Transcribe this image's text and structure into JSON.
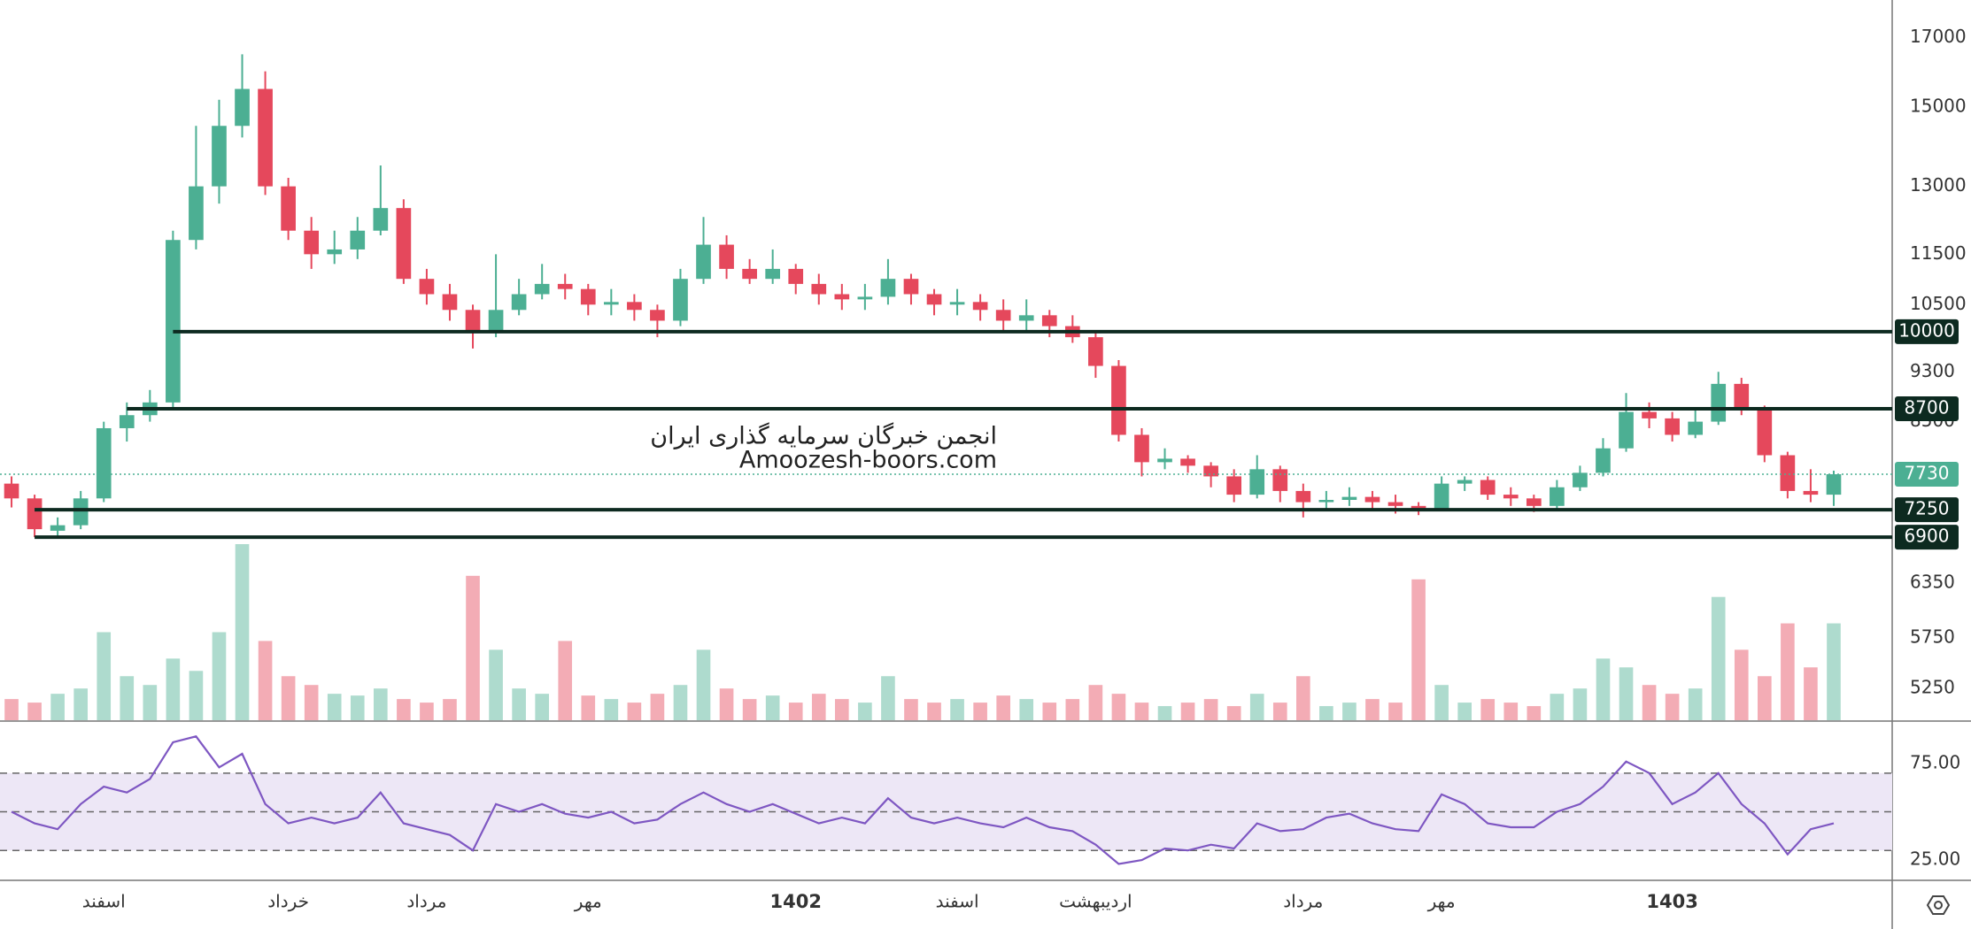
{
  "chart_data": {
    "type": "candlestick",
    "categories": [
      null,
      null,
      null,
      null,
      "اسفند",
      null,
      null,
      null,
      null,
      null,
      null,
      null,
      "خرداد",
      null,
      null,
      null,
      null,
      null,
      "مرداد",
      null,
      null,
      null,
      null,
      null,
      null,
      "مهر",
      null,
      null,
      null,
      null,
      null,
      null,
      null,
      null,
      "1402",
      null,
      null,
      null,
      null,
      null,
      null,
      "اسفند",
      null,
      null,
      null,
      null,
      null,
      "اردیبهشت",
      null,
      null,
      null,
      null,
      null,
      null,
      null,
      null,
      "مرداد",
      null,
      null,
      null,
      null,
      null,
      "مهر",
      null,
      null,
      null,
      null,
      null,
      null,
      null,
      null,
      null,
      "1403",
      null,
      null,
      null,
      null,
      null,
      null,
      null
    ],
    "open": [
      7600,
      7400,
      6980,
      7050,
      7400,
      8400,
      8600,
      8800,
      11800,
      13000,
      14500,
      15500,
      13000,
      12000,
      11500,
      11600,
      12000,
      12500,
      11000,
      10700,
      10400,
      10000,
      10400,
      10700,
      10900,
      10800,
      10500,
      10550,
      10400,
      10200,
      11000,
      11700,
      11200,
      11000,
      11200,
      10900,
      10700,
      10600,
      10650,
      11000,
      10700,
      10500,
      10550,
      10400,
      10200,
      10300,
      10100,
      9900,
      9400,
      8300,
      7900,
      7950,
      7850,
      7700,
      7450,
      7800,
      7500,
      7350,
      7380,
      7420,
      7350,
      7300,
      7250,
      7600,
      7650,
      7450,
      7400,
      7300,
      7550,
      7750,
      8100,
      8650,
      8550,
      8300,
      8500,
      9100,
      8700,
      8000,
      7500,
      7450
    ],
    "high": [
      7700,
      7450,
      7150,
      7500,
      8500,
      8800,
      9000,
      12000,
      14500,
      15200,
      16500,
      16000,
      13200,
      12300,
      12000,
      12300,
      13500,
      12700,
      11200,
      10900,
      10500,
      11500,
      11000,
      11300,
      11100,
      10900,
      10800,
      10700,
      10500,
      11200,
      12300,
      11900,
      11400,
      11600,
      11300,
      11100,
      10900,
      10900,
      11400,
      11100,
      10800,
      10800,
      10700,
      10600,
      10600,
      10400,
      10300,
      10000,
      9500,
      8400,
      8100,
      8000,
      7900,
      7800,
      8000,
      7850,
      7600,
      7500,
      7550,
      7500,
      7450,
      7350,
      7700,
      7700,
      7700,
      7550,
      7450,
      7650,
      7850,
      8250,
      8950,
      8800,
      8650,
      8700,
      9300,
      9200,
      8750,
      8050,
      7800,
      7780
    ],
    "low": [
      7280,
      6900,
      6900,
      7000,
      7350,
      8200,
      8500,
      8700,
      11600,
      12600,
      14200,
      12800,
      11800,
      11200,
      11300,
      11400,
      11900,
      10900,
      10500,
      10200,
      9700,
      9900,
      10300,
      10600,
      10600,
      10300,
      10300,
      10200,
      9900,
      10100,
      10900,
      11000,
      10900,
      10900,
      10700,
      10500,
      10400,
      10400,
      10500,
      10500,
      10300,
      10300,
      10200,
      10000,
      10000,
      9900,
      9800,
      9200,
      8200,
      7700,
      7800,
      7750,
      7550,
      7350,
      7400,
      7350,
      7150,
      7250,
      7300,
      7250,
      7200,
      7180,
      7230,
      7500,
      7380,
      7300,
      7220,
      7250,
      7500,
      7700,
      8050,
      8400,
      8200,
      8250,
      8450,
      8600,
      7900,
      7400,
      7350,
      7300
    ],
    "close": [
      7400,
      7000,
      7050,
      7400,
      8400,
      8600,
      8800,
      11800,
      13000,
      14500,
      15500,
      13000,
      12000,
      11500,
      11600,
      12000,
      12500,
      11000,
      10700,
      10400,
      10000,
      10400,
      10700,
      10900,
      10800,
      10500,
      10550,
      10400,
      10200,
      11000,
      11700,
      11200,
      11000,
      11200,
      10900,
      10700,
      10600,
      10650,
      11000,
      10700,
      10500,
      10550,
      10400,
      10200,
      10300,
      10100,
      9900,
      9400,
      8300,
      7900,
      7950,
      7850,
      7700,
      7450,
      7800,
      7500,
      7350,
      7380,
      7420,
      7350,
      7300,
      7250,
      7600,
      7650,
      7450,
      7400,
      7300,
      7550,
      7750,
      8100,
      8650,
      8550,
      8300,
      8500,
      9100,
      8700,
      8000,
      7500,
      7450,
      7730
    ],
    "volume": [
      12,
      10,
      15,
      18,
      50,
      25,
      20,
      35,
      28,
      50,
      100,
      45,
      25,
      20,
      15,
      14,
      18,
      12,
      10,
      12,
      82,
      40,
      18,
      15,
      45,
      14,
      12,
      10,
      15,
      20,
      40,
      18,
      12,
      14,
      10,
      15,
      12,
      10,
      25,
      12,
      10,
      12,
      10,
      14,
      12,
      10,
      12,
      20,
      15,
      10,
      8,
      10,
      12,
      8,
      15,
      10,
      25,
      8,
      10,
      12,
      10,
      80,
      20,
      10,
      12,
      10,
      8,
      15,
      18,
      35,
      30,
      20,
      15,
      18,
      70,
      40,
      25,
      55,
      30,
      55
    ],
    "up_color": "#4caf93",
    "down_color": "#e5485c",
    "ylim": [
      4950,
      18200
    ],
    "log_scale": true,
    "yticks": [
      17000,
      15000,
      13000,
      11500,
      10500,
      9300,
      8500,
      6350,
      5750,
      5250
    ],
    "levels": [
      10000,
      8700,
      7250,
      6900
    ],
    "level_color": "#0d2a20",
    "watermark": [
      "انجمن خبرگان سرمایه گذاری ایران",
      "Amoozesh-boors.com"
    ],
    "rsi": {
      "values": [
        50,
        44,
        41,
        54,
        63,
        60,
        67,
        86,
        89,
        73,
        80,
        54,
        44,
        47,
        44,
        47,
        60,
        44,
        41,
        38,
        30,
        54,
        50,
        54,
        49,
        47,
        50,
        44,
        46,
        54,
        60,
        54,
        50,
        54,
        49,
        44,
        47,
        44,
        57,
        47,
        44,
        47,
        44,
        42,
        47,
        42,
        40,
        33,
        23,
        25,
        31,
        30,
        33,
        31,
        44,
        40,
        41,
        47,
        49,
        44,
        41,
        40,
        59,
        54,
        44,
        42,
        42,
        50,
        54,
        63,
        76,
        70,
        54,
        60,
        70,
        54,
        44,
        28,
        41,
        44
      ],
      "ylim": [
        15,
        96
      ],
      "yticks": [
        {
          "value": 75,
          "label": "75.00"
        },
        {
          "value": 25,
          "label": "25.00"
        }
      ],
      "levels": [
        30,
        50,
        70
      ],
      "color": "#7e57c2"
    }
  }
}
